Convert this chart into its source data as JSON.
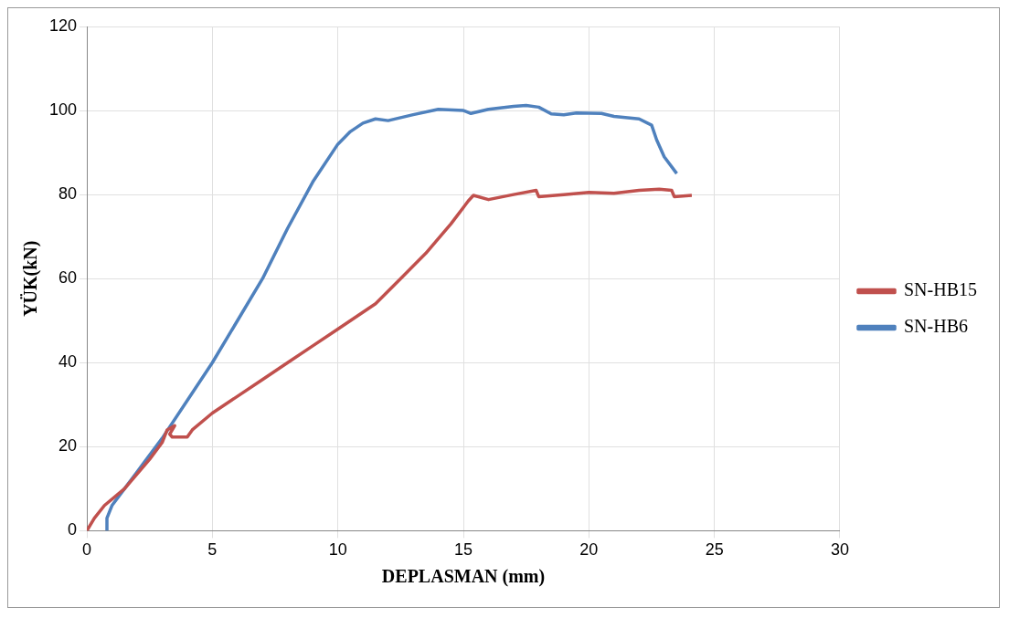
{
  "chart_data": {
    "type": "line",
    "xlabel": "DEPLASMAN (mm)",
    "ylabel": "YÜK(kN)",
    "xlim": [
      0,
      30
    ],
    "xticks": [
      0,
      5,
      10,
      15,
      20,
      25,
      30
    ],
    "ylim": [
      0,
      120
    ],
    "yticks": [
      0,
      20,
      40,
      60,
      80,
      100,
      120
    ],
    "grid": true,
    "legend": "right",
    "marker": "none",
    "line_style": "solid",
    "series": [
      {
        "name": "SN-HB15",
        "color": "#c0504d",
        "x": [
          0,
          0.3,
          0.7,
          1.5,
          2.5,
          3,
          3.2,
          3.5,
          3.3,
          3.4,
          4,
          4.2,
          5,
          6,
          7,
          8,
          9,
          10,
          11,
          11.5,
          12.5,
          13.5,
          14.5,
          15.2,
          15.4,
          16,
          17,
          17.9,
          18,
          19,
          20,
          21,
          22,
          22.8,
          23.3,
          23.4,
          24.1
        ],
        "values": [
          0,
          3,
          6,
          10,
          17,
          21,
          24,
          25,
          23,
          22.3,
          22.3,
          24,
          28,
          32,
          36,
          40,
          44,
          48,
          52,
          54,
          60,
          66,
          73,
          78.5,
          79.8,
          78.8,
          80,
          81,
          79.5,
          80,
          80.5,
          80.3,
          81,
          81.3,
          81,
          79.5,
          79.8
        ]
      },
      {
        "name": "SN-HB6",
        "color": "#4f81bd",
        "x": [
          0.8,
          0.8,
          1,
          1.5,
          2,
          3,
          4,
          5,
          6,
          7,
          8,
          9,
          10,
          10.5,
          11,
          11.5,
          12,
          13,
          14,
          15,
          15.3,
          16,
          17,
          17.5,
          18,
          18.5,
          19,
          19.5,
          20.5,
          21,
          22,
          22.5,
          22.7,
          23,
          23.5
        ],
        "values": [
          0,
          3,
          6,
          10,
          14,
          22,
          31,
          40,
          50,
          60,
          72,
          83,
          92,
          95,
          97,
          98,
          97.6,
          99,
          100.3,
          100,
          99.3,
          100.3,
          101,
          101.2,
          100.8,
          99.2,
          99,
          99.4,
          99.3,
          98.6,
          98,
          96.5,
          93,
          89,
          85
        ]
      }
    ]
  }
}
